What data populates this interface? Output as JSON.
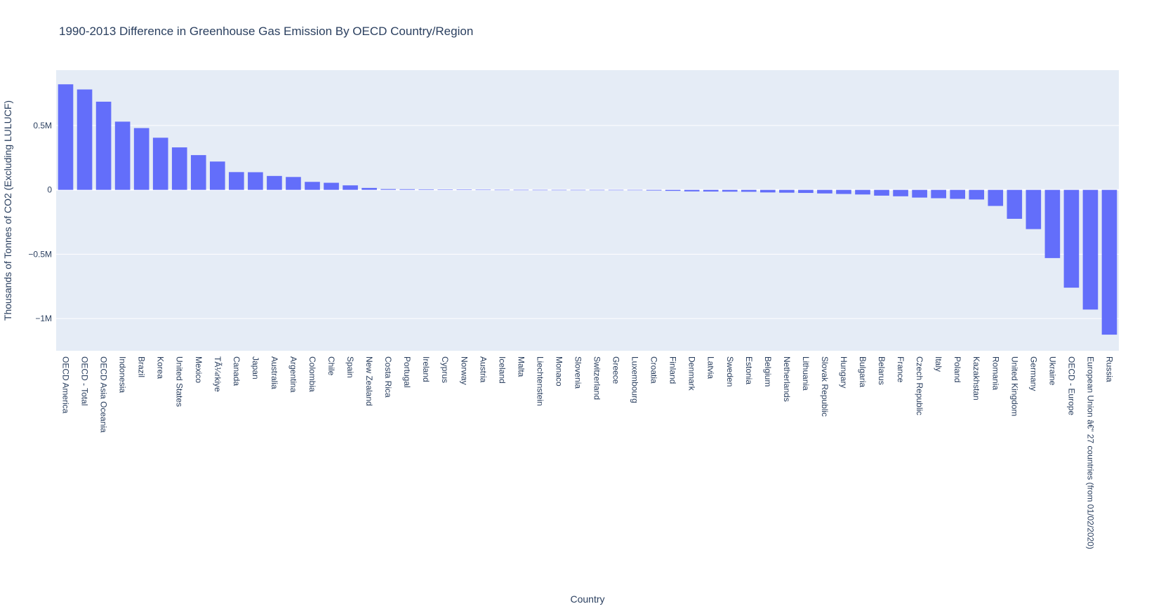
{
  "chart_data": {
    "type": "bar",
    "title": "1990-2013 Difference in Greenhouse Gas Emission By OECD Country/Region",
    "xlabel": "Country",
    "ylabel": "Thousands of Tonnes of CO2 (Excluding LULUCF)",
    "ylim": [
      -1250000,
      930000
    ],
    "yticks": [
      {
        "value": 500000,
        "label": "0.5M"
      },
      {
        "value": 0,
        "label": "0"
      },
      {
        "value": -500000,
        "label": "−0.5M"
      },
      {
        "value": -1000000,
        "label": "−1M"
      }
    ],
    "grid": true,
    "bar_color": "#636efa",
    "plot_bg": "#e5ecf6",
    "categories": [
      "OECD America",
      "OECD - Total",
      "OECD Asia Oceania",
      "Indonesia",
      "Brazil",
      "Korea",
      "United States",
      "Mexico",
      "TÃ¼rkiye",
      "Canada",
      "Japan",
      "Australia",
      "Argentina",
      "Colombia",
      "Chile",
      "Spain",
      "New Zealand",
      "Costa Rica",
      "Portugal",
      "Ireland",
      "Cyprus",
      "Norway",
      "Austria",
      "Iceland",
      "Malta",
      "Liechtenstein",
      "Monaco",
      "Slovenia",
      "Switzerland",
      "Greece",
      "Luxembourg",
      "Croatia",
      "Finland",
      "Denmark",
      "Latvia",
      "Sweden",
      "Estonia",
      "Belgium",
      "Netherlands",
      "Lithuania",
      "Slovak Republic",
      "Hungary",
      "Bulgaria",
      "Belarus",
      "France",
      "Czech Republic",
      "Italy",
      "Poland",
      "Kazakhstan",
      "Romania",
      "United Kingdom",
      "Germany",
      "Ukraine",
      "OECD - Europe",
      "European Union â€“ 27 countries (from 01/02/2020)",
      "Russia"
    ],
    "values": [
      820000,
      780000,
      685000,
      530000,
      480000,
      405000,
      330000,
      270000,
      220000,
      138000,
      137000,
      108000,
      100000,
      62000,
      55000,
      35000,
      15000,
      6000,
      5000,
      4000,
      3000,
      2000,
      1000,
      500,
      300,
      100,
      0,
      -200,
      -500,
      -1000,
      -1500,
      -5000,
      -8000,
      -12000,
      -13000,
      -14000,
      -15000,
      -20000,
      -22000,
      -24000,
      -28000,
      -32000,
      -36000,
      -45000,
      -50000,
      -60000,
      -65000,
      -70000,
      -75000,
      -125000,
      -225000,
      -305000,
      -530000,
      -760000,
      -930000,
      -1125000
    ]
  }
}
